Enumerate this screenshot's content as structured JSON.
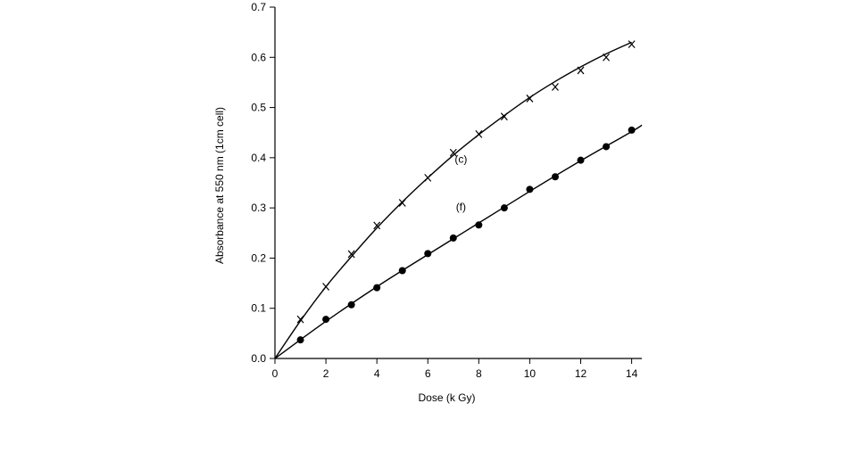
{
  "chart_data": {
    "type": "line",
    "title": "",
    "xlabel": "Dose (k Gy)",
    "ylabel": "Absorbance at 550 nm (1cm cell)",
    "xlim": [
      0,
      14.4
    ],
    "ylim": [
      0,
      0.7
    ],
    "x_ticks": [
      0,
      2,
      4,
      6,
      8,
      10,
      12,
      14
    ],
    "y_ticks": [
      0.0,
      0.1,
      0.2,
      0.3,
      0.4,
      0.5,
      0.6,
      0.7
    ],
    "x_tick_labels": [
      "0",
      "2",
      "4",
      "6",
      "8",
      "10",
      "12",
      "14"
    ],
    "y_tick_labels": [
      "0.0",
      "0.1",
      "0.2",
      "0.3",
      "0.4",
      "0.5",
      "0.6",
      "0.7"
    ],
    "grid": false,
    "legend": "none",
    "series": [
      {
        "label": "(c)",
        "marker": "x",
        "label_at": [
          7.3,
          0.39
        ],
        "x": [
          1,
          2,
          3,
          4,
          5,
          6,
          7,
          8,
          9,
          10,
          11,
          12,
          13,
          14
        ],
        "y": [
          0.078,
          0.143,
          0.208,
          0.265,
          0.31,
          0.36,
          0.41,
          0.447,
          0.482,
          0.518,
          0.541,
          0.574,
          0.6,
          0.626
        ],
        "fit_x": [
          0,
          1,
          2,
          3,
          4,
          5,
          6,
          7,
          8,
          9,
          10,
          11,
          12,
          13,
          14
        ],
        "fit_y": [
          0.0,
          0.075,
          0.143,
          0.203,
          0.26,
          0.312,
          0.36,
          0.405,
          0.446,
          0.484,
          0.52,
          0.552,
          0.581,
          0.607,
          0.63
        ]
      },
      {
        "label": "(f)",
        "marker": "filled-circle",
        "label_at": [
          7.3,
          0.295
        ],
        "x": [
          1,
          2,
          3,
          4,
          5,
          6,
          7,
          8,
          9,
          10,
          11,
          12,
          13,
          14
        ],
        "y": [
          0.037,
          0.078,
          0.107,
          0.141,
          0.175,
          0.209,
          0.24,
          0.266,
          0.3,
          0.337,
          0.362,
          0.395,
          0.422,
          0.455
        ],
        "fit_x": [
          0,
          2,
          4,
          6,
          8,
          10,
          12,
          14,
          14.4
        ],
        "fit_y": [
          0.0,
          0.074,
          0.143,
          0.207,
          0.27,
          0.333,
          0.394,
          0.452,
          0.465
        ]
      }
    ]
  }
}
